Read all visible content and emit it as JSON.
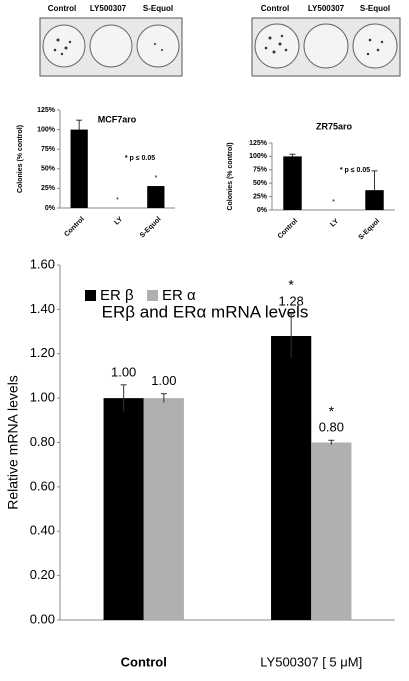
{
  "plates": [
    {
      "labels": [
        "Control",
        "LY500307",
        "S-Equol"
      ]
    },
    {
      "labels": [
        "Control",
        "LY500307",
        "S-Equol"
      ]
    }
  ],
  "chart_data": [
    {
      "type": "bar",
      "title": "MCF7aro",
      "y_label": "Colonies (% control)",
      "annotation": "* p ≤ 0.05",
      "categories": [
        "Control",
        "LY",
        "S-Equol"
      ],
      "values": [
        100,
        0,
        28
      ],
      "errors": [
        12,
        0,
        0
      ],
      "value_markers": [
        null,
        "*",
        "*"
      ],
      "color": "#000000",
      "ylim": [
        0,
        125
      ],
      "yticks": [
        {
          "value": 0,
          "label": "0%"
        },
        {
          "value": 25,
          "label": "25%"
        },
        {
          "value": 50,
          "label": "50%"
        },
        {
          "value": 75,
          "label": "75%"
        },
        {
          "value": 100,
          "label": "100%"
        },
        {
          "value": 125,
          "label": "125%"
        }
      ],
      "grid": false
    },
    {
      "type": "bar",
      "title": "ZR75aro",
      "y_label": "Colonies (% control)",
      "annotation": "* p ≤ 0.05",
      "categories": [
        "Control",
        "LY",
        "S-Equol"
      ],
      "values": [
        100,
        0,
        37
      ],
      "errors": [
        4,
        0,
        36
      ],
      "value_markers": [
        null,
        "*",
        null
      ],
      "color": "#000000",
      "ylim": [
        0,
        125
      ],
      "yticks": [
        {
          "value": 0,
          "label": "0%"
        },
        {
          "value": 25,
          "label": "25%"
        },
        {
          "value": 50,
          "label": "50%"
        },
        {
          "value": 75,
          "label": "75%"
        },
        {
          "value": 100,
          "label": "100%"
        },
        {
          "value": 125,
          "label": "125%"
        }
      ],
      "grid": false
    },
    {
      "type": "bar",
      "title": "ERβ and ERα mRNA levels",
      "y_label": "Relative mRNA levels",
      "categories": [
        "Control",
        "LY500307 [ 5 μM]"
      ],
      "series": [
        {
          "name": "ER β",
          "color": "#000000",
          "values": [
            1.0,
            1.28
          ],
          "value_labels": [
            "1.00",
            "1.28"
          ],
          "errors": [
            0.06,
            0.1
          ],
          "value_markers": [
            null,
            "*"
          ]
        },
        {
          "name": "ER α",
          "color": "#b0b0b0",
          "values": [
            1.0,
            0.8
          ],
          "value_labels": [
            "1.00",
            "0.80"
          ],
          "errors": [
            0.02,
            0.01
          ],
          "value_markers": [
            null,
            "*"
          ]
        }
      ],
      "ylim": [
        0,
        1.6
      ],
      "yticks": [
        {
          "value": 0,
          "label": "0.00"
        },
        {
          "value": 0.2,
          "label": "0.20"
        },
        {
          "value": 0.4,
          "label": "0.40"
        },
        {
          "value": 0.6,
          "label": "0.60"
        },
        {
          "value": 0.8,
          "label": "0.80"
        },
        {
          "value": 1.0,
          "label": "1.00"
        },
        {
          "value": 1.2,
          "label": "1.20"
        },
        {
          "value": 1.4,
          "label": "1.40"
        },
        {
          "value": 1.6,
          "label": "1.60"
        }
      ],
      "grid": false,
      "legend": "top-left"
    }
  ]
}
